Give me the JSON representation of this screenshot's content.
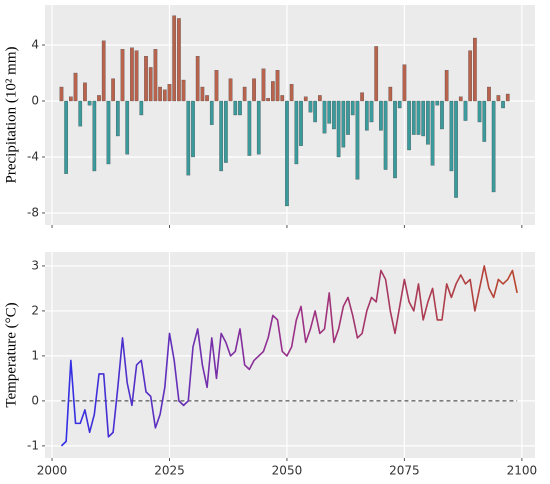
{
  "chart_data": [
    {
      "type": "bar",
      "ylabel": "Precipitation (10² mm)",
      "x": [
        2002,
        2003,
        2004,
        2005,
        2006,
        2007,
        2008,
        2009,
        2010,
        2011,
        2012,
        2013,
        2014,
        2015,
        2016,
        2017,
        2018,
        2019,
        2020,
        2021,
        2022,
        2023,
        2024,
        2025,
        2026,
        2027,
        2028,
        2029,
        2030,
        2031,
        2032,
        2033,
        2034,
        2035,
        2036,
        2037,
        2038,
        2039,
        2040,
        2041,
        2042,
        2043,
        2044,
        2045,
        2046,
        2047,
        2048,
        2049,
        2050,
        2051,
        2052,
        2053,
        2054,
        2055,
        2056,
        2057,
        2058,
        2059,
        2060,
        2061,
        2062,
        2063,
        2064,
        2065,
        2066,
        2067,
        2068,
        2069,
        2070,
        2071,
        2072,
        2073,
        2074,
        2075,
        2076,
        2077,
        2078,
        2079,
        2080,
        2081,
        2082,
        2083,
        2084,
        2085,
        2086,
        2087,
        2088,
        2089,
        2090,
        2091,
        2092,
        2093,
        2094,
        2095,
        2096,
        2097
      ],
      "values": [
        1.0,
        -5.2,
        0.3,
        2.0,
        -1.8,
        1.3,
        -0.3,
        -5.0,
        0.4,
        4.3,
        -4.5,
        1.6,
        -2.5,
        3.7,
        -3.8,
        3.8,
        3.6,
        -1.0,
        3.2,
        2.4,
        3.7,
        1.0,
        0.8,
        1.2,
        6.1,
        5.9,
        1.5,
        -5.3,
        -4.0,
        3.2,
        1.0,
        0.4,
        -1.7,
        2.2,
        -5.0,
        -4.4,
        1.6,
        -1.0,
        -1.0,
        1.0,
        -3.9,
        1.6,
        -3.8,
        2.3,
        0.2,
        1.4,
        2.2,
        0.4,
        -7.5,
        1.2,
        -4.5,
        -3.2,
        0.3,
        -0.8,
        -1.5,
        0.4,
        -2.3,
        -1.6,
        -2.0,
        -4.0,
        -3.3,
        -2.4,
        -1.0,
        -5.6,
        0.6,
        -2.1,
        -1.5,
        3.9,
        -2.1,
        -4.9,
        1.0,
        -5.5,
        -0.5,
        2.6,
        -3.5,
        -2.4,
        -2.4,
        -2.5,
        -3.1,
        -4.6,
        -0.3,
        -2.0,
        2.2,
        -5.0,
        -6.9,
        0.3,
        -1.4,
        3.6,
        4.5,
        -1.5,
        -2.9,
        1.0,
        -6.5,
        0.4,
        -0.5,
        0.5
      ],
      "positive_color": "#b9634d",
      "negative_color": "#3a9a9c",
      "xlim": [
        1998.5,
        2102.8
      ],
      "xticks": [
        2000,
        2025,
        2050,
        2075,
        2100
      ],
      "ylim": [
        -8.86,
        6.86
      ],
      "yticks": [
        -8,
        -4,
        0,
        4
      ],
      "grid": true
    },
    {
      "type": "line",
      "ylabel": "Temperature (°C)",
      "x": [
        2002,
        2003,
        2004,
        2005,
        2006,
        2007,
        2008,
        2009,
        2010,
        2011,
        2012,
        2013,
        2014,
        2015,
        2016,
        2017,
        2018,
        2019,
        2020,
        2021,
        2022,
        2023,
        2024,
        2025,
        2026,
        2027,
        2028,
        2029,
        2030,
        2031,
        2032,
        2033,
        2034,
        2035,
        2036,
        2037,
        2038,
        2039,
        2040,
        2041,
        2042,
        2043,
        2044,
        2045,
        2046,
        2047,
        2048,
        2049,
        2050,
        2051,
        2052,
        2053,
        2054,
        2055,
        2056,
        2057,
        2058,
        2059,
        2060,
        2061,
        2062,
        2063,
        2064,
        2065,
        2066,
        2067,
        2068,
        2069,
        2070,
        2071,
        2072,
        2073,
        2074,
        2075,
        2076,
        2077,
        2078,
        2079,
        2080,
        2081,
        2082,
        2083,
        2084,
        2085,
        2086,
        2087,
        2088,
        2089,
        2090,
        2091,
        2092,
        2093,
        2094,
        2095,
        2096,
        2097,
        2098,
        2099
      ],
      "values": [
        -1.0,
        -0.9,
        0.9,
        -0.5,
        -0.5,
        -0.2,
        -0.7,
        -0.3,
        0.6,
        0.6,
        -0.8,
        -0.7,
        0.3,
        1.4,
        0.4,
        -0.1,
        0.8,
        0.9,
        0.2,
        0.1,
        -0.6,
        -0.3,
        0.3,
        1.5,
        0.9,
        0.0,
        -0.1,
        0.0,
        1.2,
        1.6,
        0.8,
        0.3,
        1.4,
        0.5,
        1.5,
        1.3,
        1.0,
        1.1,
        1.6,
        0.8,
        0.7,
        0.9,
        1.0,
        1.1,
        1.4,
        1.9,
        1.8,
        1.1,
        1.0,
        1.2,
        1.8,
        2.1,
        1.3,
        1.6,
        2.0,
        1.5,
        1.6,
        2.4,
        1.3,
        1.6,
        2.1,
        2.3,
        1.9,
        1.4,
        1.5,
        2.0,
        2.3,
        2.2,
        2.9,
        2.7,
        2.0,
        1.5,
        2.1,
        2.7,
        2.2,
        2.0,
        2.6,
        1.8,
        2.2,
        2.5,
        1.8,
        1.8,
        2.6,
        2.3,
        2.6,
        2.8,
        2.6,
        2.7,
        2.0,
        2.5,
        3.0,
        2.5,
        2.3,
        2.7,
        2.6,
        2.7,
        2.9,
        2.4
      ],
      "colors": [
        "#2f2fe6",
        "#9a2f8a",
        "#b8452c"
      ],
      "hline": 0,
      "xlim": [
        1998.5,
        2102.8
      ],
      "xticks": [
        2000,
        2025,
        2050,
        2075,
        2100
      ],
      "ylim": [
        -1.27,
        3.31
      ],
      "yticks": [
        -1,
        0,
        1,
        2,
        3
      ],
      "grid": true
    }
  ]
}
